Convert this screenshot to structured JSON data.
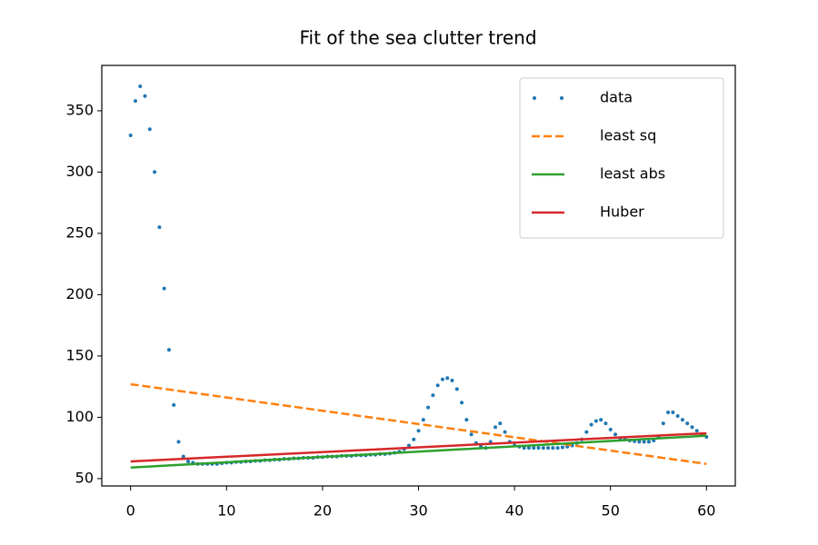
{
  "chart_data": {
    "type": "line",
    "title": "Fit of the sea clutter trend",
    "xlim": [
      -3,
      63
    ],
    "ylim": [
      44,
      387
    ],
    "xticks": [
      0,
      10,
      20,
      30,
      40,
      50,
      60
    ],
    "yticks": [
      50,
      100,
      150,
      200,
      250,
      300,
      350
    ],
    "legend": "upper right",
    "series": [
      {
        "name": "data",
        "color": "#1f77b4",
        "style": "dots",
        "x": [
          0,
          0.5,
          1,
          1.5,
          2,
          2.5,
          3,
          3.5,
          4,
          4.5,
          5,
          5.5,
          6,
          6.5,
          7,
          7.5,
          8,
          8.5,
          9,
          9.5,
          10,
          10.5,
          11,
          11.5,
          12,
          12.5,
          13,
          13.5,
          14,
          14.5,
          15,
          15.5,
          16,
          16.5,
          17,
          17.5,
          18,
          18.5,
          19,
          19.5,
          20,
          20.5,
          21,
          21.5,
          22,
          22.5,
          23,
          23.5,
          24,
          24.5,
          25,
          25.5,
          26,
          26.5,
          27,
          27.5,
          28,
          28.5,
          29,
          29.5,
          30,
          30.5,
          31,
          31.5,
          32,
          32.5,
          33,
          33.5,
          34,
          34.5,
          35,
          35.5,
          36,
          36.5,
          37,
          37.5,
          38,
          38.5,
          39,
          39.5,
          40,
          40.5,
          41,
          41.5,
          42,
          42.5,
          43,
          43.5,
          44,
          44.5,
          45,
          45.5,
          46,
          46.5,
          47,
          47.5,
          48,
          48.5,
          49,
          49.5,
          50,
          50.5,
          51,
          51.5,
          52,
          52.5,
          53,
          53.5,
          54,
          54.5,
          55,
          55.5,
          56,
          56.5,
          57,
          57.5,
          58,
          58.5,
          59,
          59.5,
          60
        ],
        "values": [
          330,
          358,
          370,
          362,
          335,
          300,
          255,
          205,
          155,
          110,
          80,
          68,
          64,
          63,
          62,
          62,
          62,
          62,
          62,
          62.5,
          63,
          63,
          63.5,
          63.5,
          64,
          64,
          64.5,
          64.5,
          65,
          65,
          65.5,
          65.5,
          66,
          66,
          66.5,
          66.5,
          67,
          67,
          67,
          67.5,
          67.5,
          68,
          68,
          68,
          68.5,
          68.5,
          68.5,
          69,
          69,
          69,
          69.5,
          69.5,
          70,
          70,
          70.5,
          71,
          72,
          74,
          77,
          82,
          89,
          98,
          108,
          118,
          126,
          131,
          132,
          130,
          123,
          112,
          98,
          86,
          79,
          76,
          75,
          80,
          92,
          95,
          88,
          80,
          77,
          76,
          75,
          75,
          75,
          75,
          75,
          75,
          75,
          75,
          75.5,
          76,
          77,
          79,
          82,
          88,
          94,
          97,
          98,
          95,
          90,
          86,
          83,
          82,
          81,
          80.5,
          80,
          80,
          80,
          81,
          84,
          95,
          104,
          104,
          101,
          98,
          95,
          92,
          89,
          86,
          84
        ]
      },
      {
        "name": "least sq",
        "color": "#ff7f0e",
        "style": "dashed",
        "x": [
          0,
          60
        ],
        "values": [
          127,
          62
        ]
      },
      {
        "name": "least abs",
        "color": "#2ca02c",
        "style": "solid",
        "x": [
          0,
          60
        ],
        "values": [
          59,
          85
        ]
      },
      {
        "name": "Huber",
        "color": "#d62728",
        "style": "solid",
        "x": [
          0,
          60
        ],
        "values": [
          64,
          87
        ]
      }
    ]
  }
}
